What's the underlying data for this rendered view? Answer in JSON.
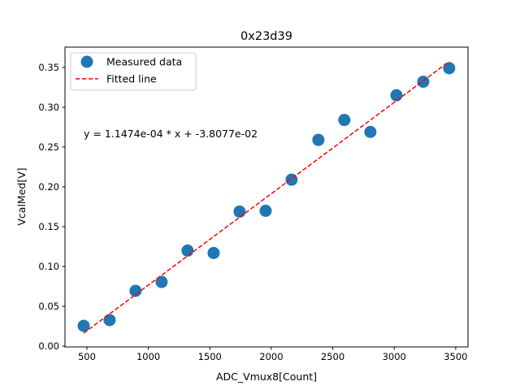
{
  "chart_data": {
    "type": "scatter",
    "title": "0x23d39",
    "xlabel": "ADC_Vmux8[Count]",
    "ylabel": "VcalMed[V]",
    "xlim": [
      322,
      3600
    ],
    "ylim": [
      -0.001,
      0.3755
    ],
    "xticks": [
      500,
      1000,
      1500,
      2000,
      2500,
      3000,
      3500
    ],
    "xtick_labels": [
      "500",
      "1000",
      "1500",
      "2000",
      "2500",
      "3000",
      "3500"
    ],
    "yticks": [
      0.0,
      0.05,
      0.1,
      0.15,
      0.2,
      0.25,
      0.3,
      0.35
    ],
    "ytick_labels": [
      "0.00",
      "0.05",
      "0.10",
      "0.15",
      "0.20",
      "0.25",
      "0.30",
      "0.35"
    ],
    "grid": false,
    "legend_position": "top-left",
    "series": [
      {
        "name": "Measured data",
        "kind": "points",
        "color": "#1f77b4",
        "x": [
          474,
          685,
          896,
          1108,
          1319,
          1531,
          1742,
          1954,
          2165,
          2383,
          2594,
          2806,
          3018,
          3236,
          3447
        ],
        "y": [
          0.0255,
          0.0327,
          0.0694,
          0.0806,
          0.12,
          0.117,
          0.169,
          0.17,
          0.209,
          0.259,
          0.284,
          0.269,
          0.315,
          0.332,
          0.349
        ]
      },
      {
        "name": "Fitted line",
        "kind": "dashed-line",
        "color": "#ff0000",
        "slope": 0.00011474,
        "intercept": -0.038077,
        "x_range": [
          474,
          3447
        ]
      }
    ],
    "annotation": "y = 1.1474e-04 * x + -3.8077e-02"
  }
}
